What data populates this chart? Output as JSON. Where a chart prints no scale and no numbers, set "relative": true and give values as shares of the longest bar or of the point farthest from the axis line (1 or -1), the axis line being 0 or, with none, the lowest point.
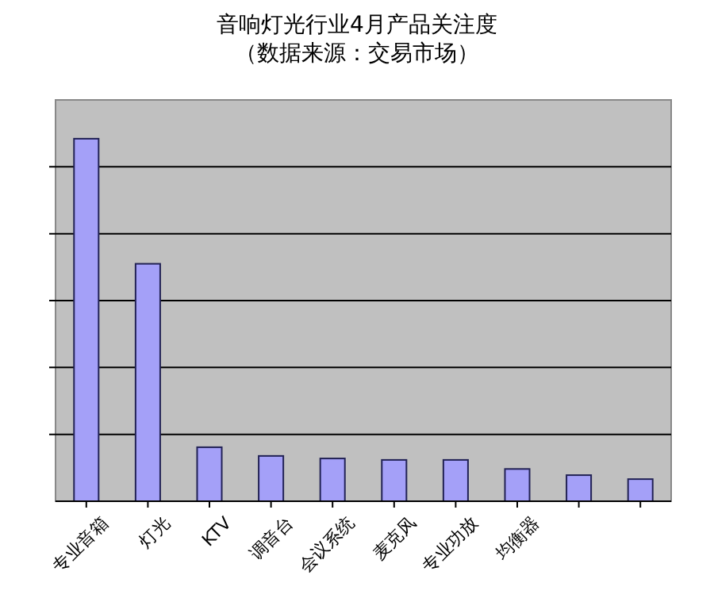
{
  "chart_data": {
    "type": "bar",
    "title": "音响灯光行业4月产品关注度",
    "subtitle": "（数据来源：交易市场）",
    "categories": [
      "专业音箱",
      "灯光",
      "KTV",
      "调音台",
      "会议系统",
      "麦克风",
      "专业功放",
      "均衡器",
      null,
      null
    ],
    "values": [
      1,
      0.655,
      0.149,
      0.125,
      0.118,
      0.114,
      0.114,
      0.089,
      0.072,
      0.061
    ],
    "color": "#a4a0f8",
    "relative": true,
    "grid": "y"
  }
}
